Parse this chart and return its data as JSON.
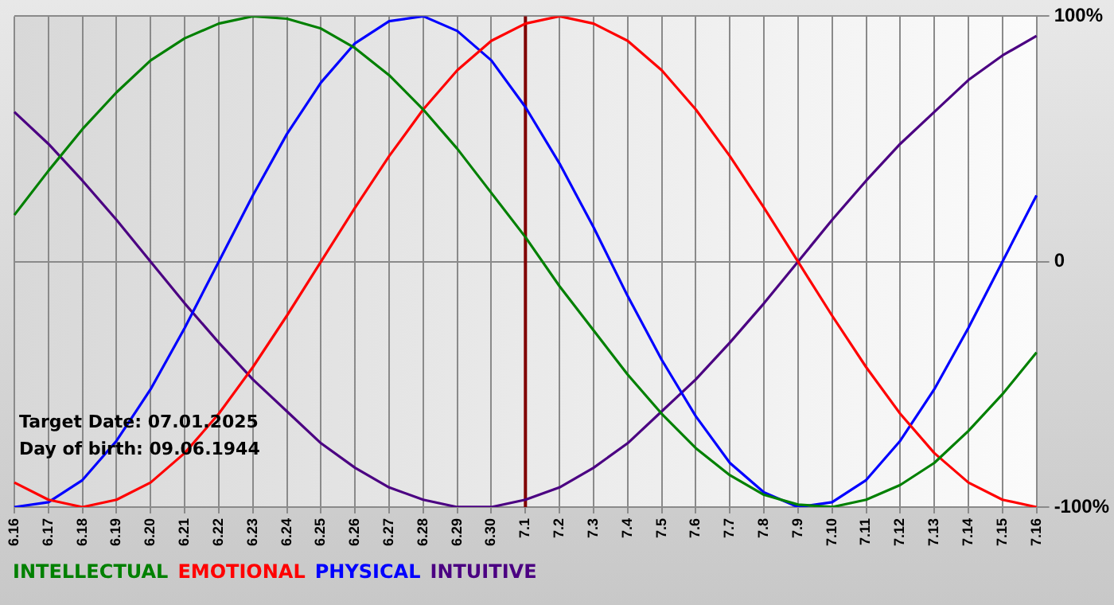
{
  "chart_data": {
    "type": "line",
    "categories": [
      "6.16",
      "6.17",
      "6.18",
      "6.19",
      "6.20",
      "6.21",
      "6.22",
      "6.23",
      "6.24",
      "6.25",
      "6.26",
      "6.27",
      "6.28",
      "6.29",
      "6.30",
      "7.1",
      "7.2",
      "7.3",
      "7.4",
      "7.5",
      "7.6",
      "7.7",
      "7.8",
      "7.9",
      "7.10",
      "7.11",
      "7.12",
      "7.13",
      "7.14",
      "7.15",
      "7.16"
    ],
    "series": [
      {
        "name": "INTELLECTUAL",
        "color": "#008000",
        "values": [
          19,
          37,
          54,
          69,
          82,
          91,
          97,
          100,
          99,
          95,
          87,
          76,
          62,
          46,
          28,
          10,
          -10,
          -28,
          -46,
          -62,
          -76,
          -87,
          -95,
          -99,
          -100,
          -97,
          -91,
          -82,
          -69,
          -54,
          -37
        ]
      },
      {
        "name": "EMOTIONAL",
        "color": "#ff0000",
        "values": [
          -90,
          -97,
          -100,
          -97,
          -90,
          -78,
          -62,
          -43,
          -22,
          0,
          22,
          43,
          62,
          78,
          90,
          97,
          100,
          97,
          90,
          78,
          62,
          43,
          22,
          0,
          -22,
          -43,
          -62,
          -78,
          -90,
          -97,
          -100
        ]
      },
      {
        "name": "PHYSICAL",
        "color": "#0000ff",
        "values": [
          -100,
          -98,
          -89,
          -73,
          -52,
          -27,
          0,
          27,
          52,
          73,
          89,
          98,
          100,
          94,
          82,
          63,
          40,
          14,
          -14,
          -40,
          -63,
          -82,
          -94,
          -100,
          -98,
          -89,
          -73,
          -52,
          -27,
          0,
          27
        ]
      },
      {
        "name": "INTUITIVE",
        "color": "#4b0082",
        "values": [
          61,
          48,
          33,
          17,
          0,
          -17,
          -33,
          -48,
          -61,
          -74,
          -84,
          -92,
          -97,
          -100,
          -100,
          -97,
          -92,
          -84,
          -74,
          -61,
          -48,
          -33,
          -17,
          0,
          17,
          33,
          48,
          61,
          74,
          84,
          92
        ]
      }
    ],
    "ylim": [
      -100,
      100
    ],
    "yticks": [
      {
        "value": -100,
        "label": "-100%"
      },
      0,
      {
        "value": 100,
        "label": "100%"
      }
    ],
    "grid": true,
    "legend": "bottom",
    "marker": "none",
    "ref_lines": [
      {
        "axis": "x",
        "value": "7.1",
        "color": "#800000"
      }
    ],
    "annotations": [
      "Target Date: 07.01.2025",
      "Day of birth: 09.06.1944"
    ]
  }
}
